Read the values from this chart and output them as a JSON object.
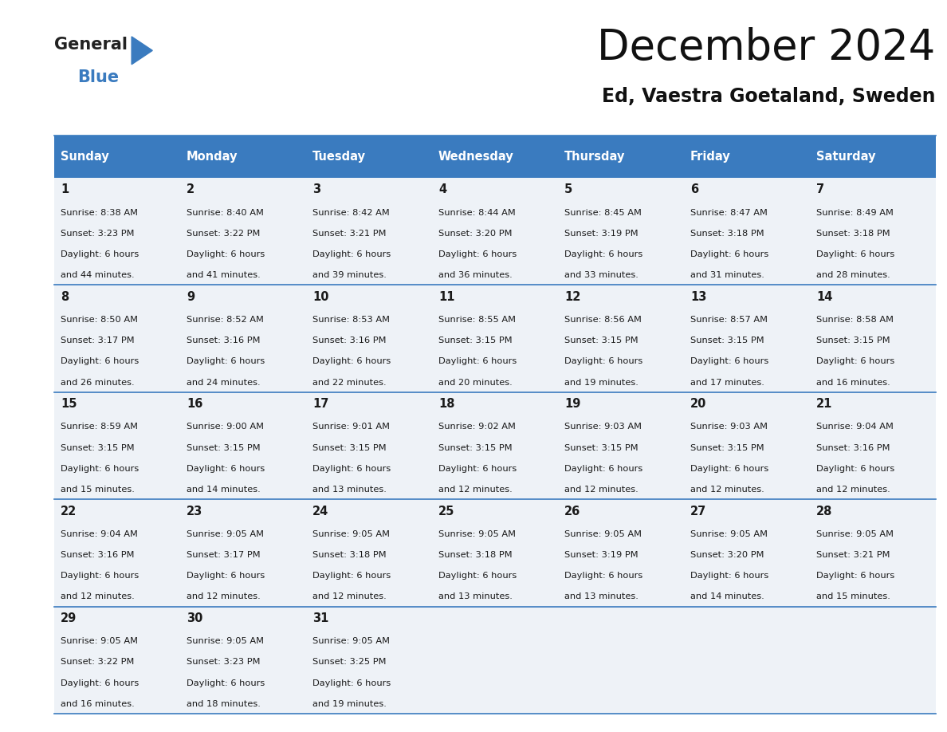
{
  "title": "December 2024",
  "subtitle": "Ed, Vaestra Goetaland, Sweden",
  "header_color": "#3a7bbf",
  "header_text_color": "#ffffff",
  "cell_bg_color": "#eef2f7",
  "border_color": "#3a7bbf",
  "text_color": "#1a1a1a",
  "days_of_week": [
    "Sunday",
    "Monday",
    "Tuesday",
    "Wednesday",
    "Thursday",
    "Friday",
    "Saturday"
  ],
  "weeks": [
    [
      {
        "day": 1,
        "sunrise": "8:38 AM",
        "sunset": "3:23 PM",
        "daylight_min": "44"
      },
      {
        "day": 2,
        "sunrise": "8:40 AM",
        "sunset": "3:22 PM",
        "daylight_min": "41"
      },
      {
        "day": 3,
        "sunrise": "8:42 AM",
        "sunset": "3:21 PM",
        "daylight_min": "39"
      },
      {
        "day": 4,
        "sunrise": "8:44 AM",
        "sunset": "3:20 PM",
        "daylight_min": "36"
      },
      {
        "day": 5,
        "sunrise": "8:45 AM",
        "sunset": "3:19 PM",
        "daylight_min": "33"
      },
      {
        "day": 6,
        "sunrise": "8:47 AM",
        "sunset": "3:18 PM",
        "daylight_min": "31"
      },
      {
        "day": 7,
        "sunrise": "8:49 AM",
        "sunset": "3:18 PM",
        "daylight_min": "28"
      }
    ],
    [
      {
        "day": 8,
        "sunrise": "8:50 AM",
        "sunset": "3:17 PM",
        "daylight_min": "26"
      },
      {
        "day": 9,
        "sunrise": "8:52 AM",
        "sunset": "3:16 PM",
        "daylight_min": "24"
      },
      {
        "day": 10,
        "sunrise": "8:53 AM",
        "sunset": "3:16 PM",
        "daylight_min": "22"
      },
      {
        "day": 11,
        "sunrise": "8:55 AM",
        "sunset": "3:15 PM",
        "daylight_min": "20"
      },
      {
        "day": 12,
        "sunrise": "8:56 AM",
        "sunset": "3:15 PM",
        "daylight_min": "19"
      },
      {
        "day": 13,
        "sunrise": "8:57 AM",
        "sunset": "3:15 PM",
        "daylight_min": "17"
      },
      {
        "day": 14,
        "sunrise": "8:58 AM",
        "sunset": "3:15 PM",
        "daylight_min": "16"
      }
    ],
    [
      {
        "day": 15,
        "sunrise": "8:59 AM",
        "sunset": "3:15 PM",
        "daylight_min": "15"
      },
      {
        "day": 16,
        "sunrise": "9:00 AM",
        "sunset": "3:15 PM",
        "daylight_min": "14"
      },
      {
        "day": 17,
        "sunrise": "9:01 AM",
        "sunset": "3:15 PM",
        "daylight_min": "13"
      },
      {
        "day": 18,
        "sunrise": "9:02 AM",
        "sunset": "3:15 PM",
        "daylight_min": "12"
      },
      {
        "day": 19,
        "sunrise": "9:03 AM",
        "sunset": "3:15 PM",
        "daylight_min": "12"
      },
      {
        "day": 20,
        "sunrise": "9:03 AM",
        "sunset": "3:15 PM",
        "daylight_min": "12"
      },
      {
        "day": 21,
        "sunrise": "9:04 AM",
        "sunset": "3:16 PM",
        "daylight_min": "12"
      }
    ],
    [
      {
        "day": 22,
        "sunrise": "9:04 AM",
        "sunset": "3:16 PM",
        "daylight_min": "12"
      },
      {
        "day": 23,
        "sunrise": "9:05 AM",
        "sunset": "3:17 PM",
        "daylight_min": "12"
      },
      {
        "day": 24,
        "sunrise": "9:05 AM",
        "sunset": "3:18 PM",
        "daylight_min": "12"
      },
      {
        "day": 25,
        "sunrise": "9:05 AM",
        "sunset": "3:18 PM",
        "daylight_min": "13"
      },
      {
        "day": 26,
        "sunrise": "9:05 AM",
        "sunset": "3:19 PM",
        "daylight_min": "13"
      },
      {
        "day": 27,
        "sunrise": "9:05 AM",
        "sunset": "3:20 PM",
        "daylight_min": "14"
      },
      {
        "day": 28,
        "sunrise": "9:05 AM",
        "sunset": "3:21 PM",
        "daylight_min": "15"
      }
    ],
    [
      {
        "day": 29,
        "sunrise": "9:05 AM",
        "sunset": "3:22 PM",
        "daylight_min": "16"
      },
      {
        "day": 30,
        "sunrise": "9:05 AM",
        "sunset": "3:23 PM",
        "daylight_min": "18"
      },
      {
        "day": 31,
        "sunrise": "9:05 AM",
        "sunset": "3:25 PM",
        "daylight_min": "19"
      },
      null,
      null,
      null,
      null
    ]
  ],
  "background_color": "#ffffff",
  "fig_width": 11.88,
  "fig_height": 9.18,
  "dpi": 100
}
